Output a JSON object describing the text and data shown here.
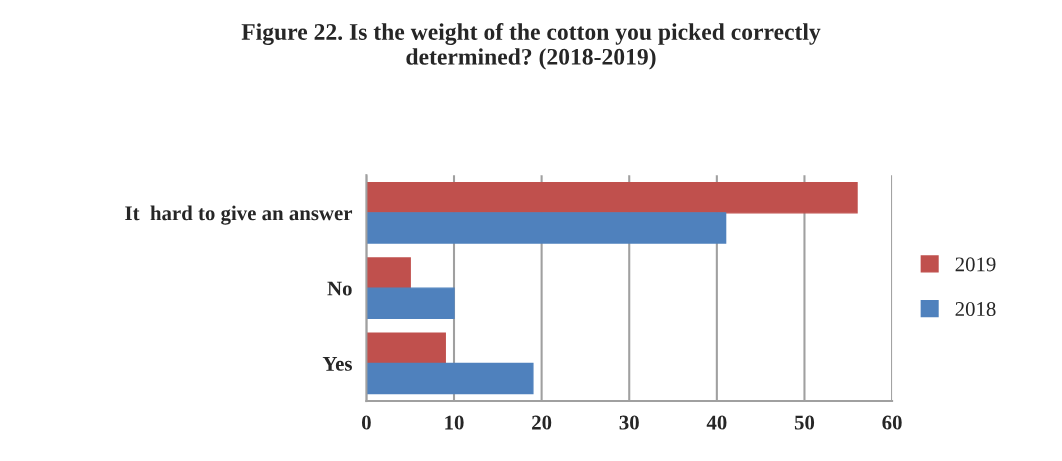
{
  "chart_data": {
    "type": "bar",
    "orientation": "horizontal",
    "title": "Figure 22. Is the weight of the cotton you picked correctly\ndetermined? (2018-2019)",
    "categories": [
      "It  hard to give an answer",
      "No",
      "Yes"
    ],
    "series": [
      {
        "name": "2019",
        "color": "#c0504d",
        "values": [
          56,
          5,
          9
        ]
      },
      {
        "name": "2018",
        "color": "#4f81bd",
        "values": [
          41,
          10,
          19
        ]
      }
    ],
    "xlim": [
      0,
      60
    ],
    "xticks": [
      0,
      10,
      20,
      30,
      40,
      50,
      60
    ],
    "grid": "x",
    "legend": "right"
  }
}
